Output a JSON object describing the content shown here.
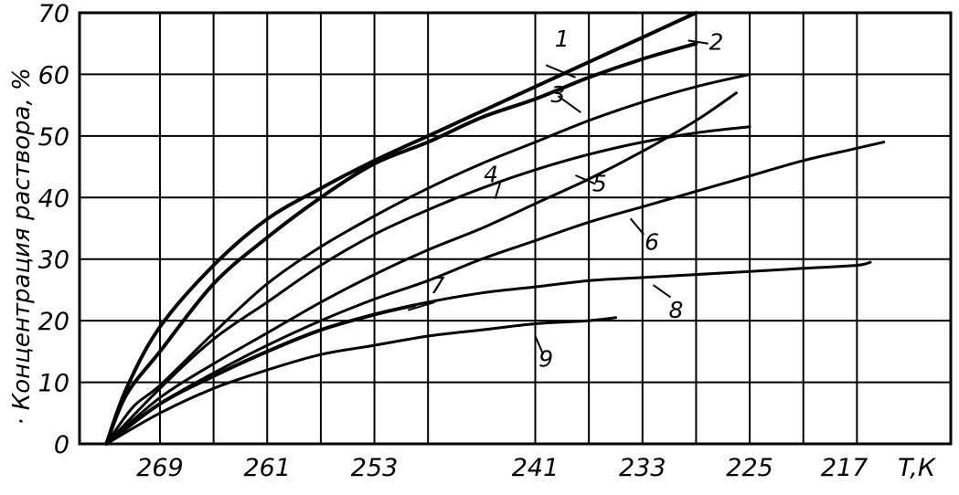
{
  "chart_data": {
    "type": "line",
    "title": "",
    "ylabel": "· Концентрация раствора, %",
    "xlabel": "T,К",
    "x_reversed": true,
    "xlim": [
      275,
      210
    ],
    "ylim": [
      0,
      70
    ],
    "grid": true,
    "x_ticks": [
      {
        "value": 269,
        "label": "269"
      },
      {
        "value": 261,
        "label": "261"
      },
      {
        "value": 253,
        "label": "253"
      },
      {
        "value": 241,
        "label": "241"
      },
      {
        "value": 233,
        "label": "233"
      },
      {
        "value": 225,
        "label": "225"
      },
      {
        "value": 217,
        "label": "217"
      }
    ],
    "x_gridlines": [
      269,
      265,
      261,
      257,
      253,
      249,
      241,
      237,
      233,
      229,
      225,
      221,
      217
    ],
    "y_ticks": [
      0,
      10,
      20,
      30,
      40,
      50,
      60,
      70
    ],
    "series": [
      {
        "name": "1",
        "x": [
          273,
          271.5,
          269,
          265,
          261,
          257,
          253,
          249,
          245,
          241,
          237,
          233,
          229
        ],
        "y": [
          0,
          9,
          19,
          29,
          36.5,
          41.5,
          46,
          50,
          54,
          58,
          62,
          66,
          70
        ]
      },
      {
        "name": "2",
        "x": [
          273,
          271.5,
          269,
          265,
          261,
          257,
          253,
          249,
          245,
          241,
          237,
          233,
          229
        ],
        "y": [
          0,
          8,
          15,
          26,
          33.5,
          40,
          45.5,
          49,
          53,
          56,
          59.5,
          62.5,
          65
        ]
      },
      {
        "name": "3",
        "x": [
          273,
          271,
          269,
          265,
          261,
          257,
          253,
          249,
          245,
          241,
          237,
          233,
          229,
          225
        ],
        "y": [
          0,
          6,
          9.5,
          18,
          26,
          32,
          37,
          41.5,
          45.5,
          49,
          52.5,
          55.5,
          58,
          60
        ]
      },
      {
        "name": "4",
        "x": [
          273,
          269,
          265,
          261,
          257,
          253,
          249,
          245,
          241,
          237,
          233,
          229,
          225
        ],
        "y": [
          0,
          9,
          17,
          23,
          29,
          34,
          38,
          41.5,
          44.5,
          47,
          49,
          50.5,
          51.5
        ]
      },
      {
        "name": "5",
        "x": [
          273,
          269,
          265,
          261,
          257,
          253,
          249,
          245,
          241,
          237,
          233,
          229,
          226
        ],
        "y": [
          0,
          7.5,
          13,
          18,
          23,
          27.5,
          31.5,
          35,
          39,
          43,
          47.5,
          52.5,
          57
        ]
      },
      {
        "name": "6",
        "x": [
          273,
          269,
          265,
          261,
          257,
          253,
          249,
          245,
          241,
          237,
          233,
          229,
          225,
          221,
          217,
          215
        ],
        "y": [
          0,
          6.5,
          11.5,
          16,
          20,
          23.5,
          26.5,
          30,
          33,
          36,
          38.5,
          41,
          43.5,
          46,
          48,
          49
        ]
      },
      {
        "name": "7",
        "x": [
          273,
          269,
          265,
          261,
          257,
          253,
          250
        ],
        "y": [
          0,
          6.5,
          11,
          15,
          18.5,
          21,
          22.5
        ]
      },
      {
        "name": "8",
        "x": [
          273,
          269,
          265,
          261,
          257,
          253,
          249,
          245,
          241,
          237,
          233,
          229,
          225,
          221,
          217,
          216
        ],
        "y": [
          0,
          6.5,
          11,
          15,
          18.5,
          21,
          23,
          24.5,
          25.5,
          26.5,
          27,
          27.5,
          28,
          28.5,
          29,
          29.5
        ]
      },
      {
        "name": "9",
        "x": [
          273,
          269,
          265,
          261,
          257,
          253,
          249,
          245,
          241,
          237,
          235
        ],
        "y": [
          0,
          5,
          9,
          12,
          14.5,
          16,
          17.5,
          18.5,
          19.5,
          20,
          20.5
        ]
      }
    ],
    "curve_labels": [
      {
        "text": "1",
        "x": 239,
        "y": 64.5,
        "lx1": 240.2,
        "ly1": 61.5,
        "lx2": 238,
        "ly2": 59.5
      },
      {
        "name": "2",
        "text": "2",
        "x": 227.5,
        "y": 64,
        "lx1": 228.1,
        "ly1": 65,
        "lx2": 229.6,
        "ly2": 65.5
      },
      {
        "text": "3",
        "x": 239.3,
        "y": 55.5,
        "lx1": 239.3,
        "ly1": 56.5,
        "lx2": 237.6,
        "ly2": 53.8
      },
      {
        "text": "4",
        "x": 244.3,
        "y": 42.5,
        "lx1": 243.6,
        "ly1": 42.5,
        "lx2": 244,
        "ly2": 39.8
      },
      {
        "text": "5",
        "x": 236.2,
        "y": 41,
        "lx1": 236.5,
        "ly1": 42.2,
        "lx2": 238,
        "ly2": 43.6
      },
      {
        "text": "6",
        "x": 232.3,
        "y": 31.5,
        "lx1": 232.9,
        "ly1": 34,
        "lx2": 233.9,
        "ly2": 36.6
      },
      {
        "text": "7",
        "x": 248.3,
        "y": 24.5,
        "lx1": 248.5,
        "ly1": 23,
        "lx2": 250.5,
        "ly2": 21.7
      },
      {
        "text": "8",
        "x": 230.5,
        "y": 20.5,
        "lx1": 230.9,
        "ly1": 23.8,
        "lx2": 232.2,
        "ly2": 25.8
      },
      {
        "text": "9",
        "x": 240.2,
        "y": 12.5,
        "lx1": 240.4,
        "ly1": 14.5,
        "lx2": 241,
        "ly2": 17.5
      }
    ]
  }
}
